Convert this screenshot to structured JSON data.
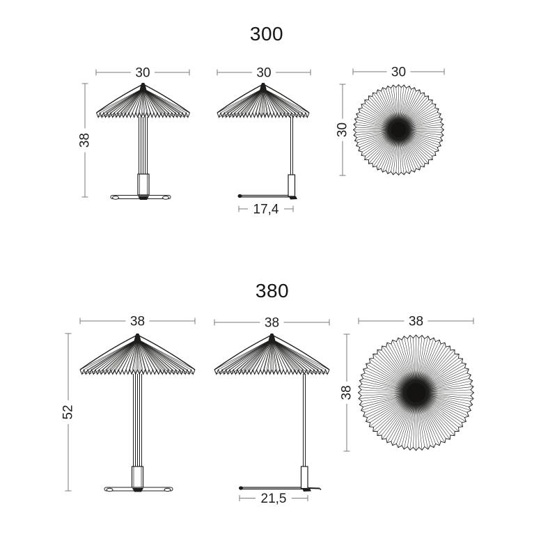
{
  "page": {
    "background_color": "#ffffff",
    "line_color": "#1d1d1b",
    "dimension_line_color": "#7a7a7a"
  },
  "sections": [
    {
      "id": "300",
      "title": "300",
      "views": {
        "front": {
          "width_label": "30",
          "height_label": "38"
        },
        "side": {
          "width_label": "30",
          "depth_label": "17,4"
        },
        "top": {
          "width_label": "30",
          "height_label": "30"
        }
      }
    },
    {
      "id": "380",
      "title": "380",
      "views": {
        "front": {
          "width_label": "38",
          "height_label": "52"
        },
        "side": {
          "width_label": "38",
          "depth_label": "21,5"
        },
        "top": {
          "width_label": "38",
          "height_label": "38"
        }
      }
    }
  ]
}
